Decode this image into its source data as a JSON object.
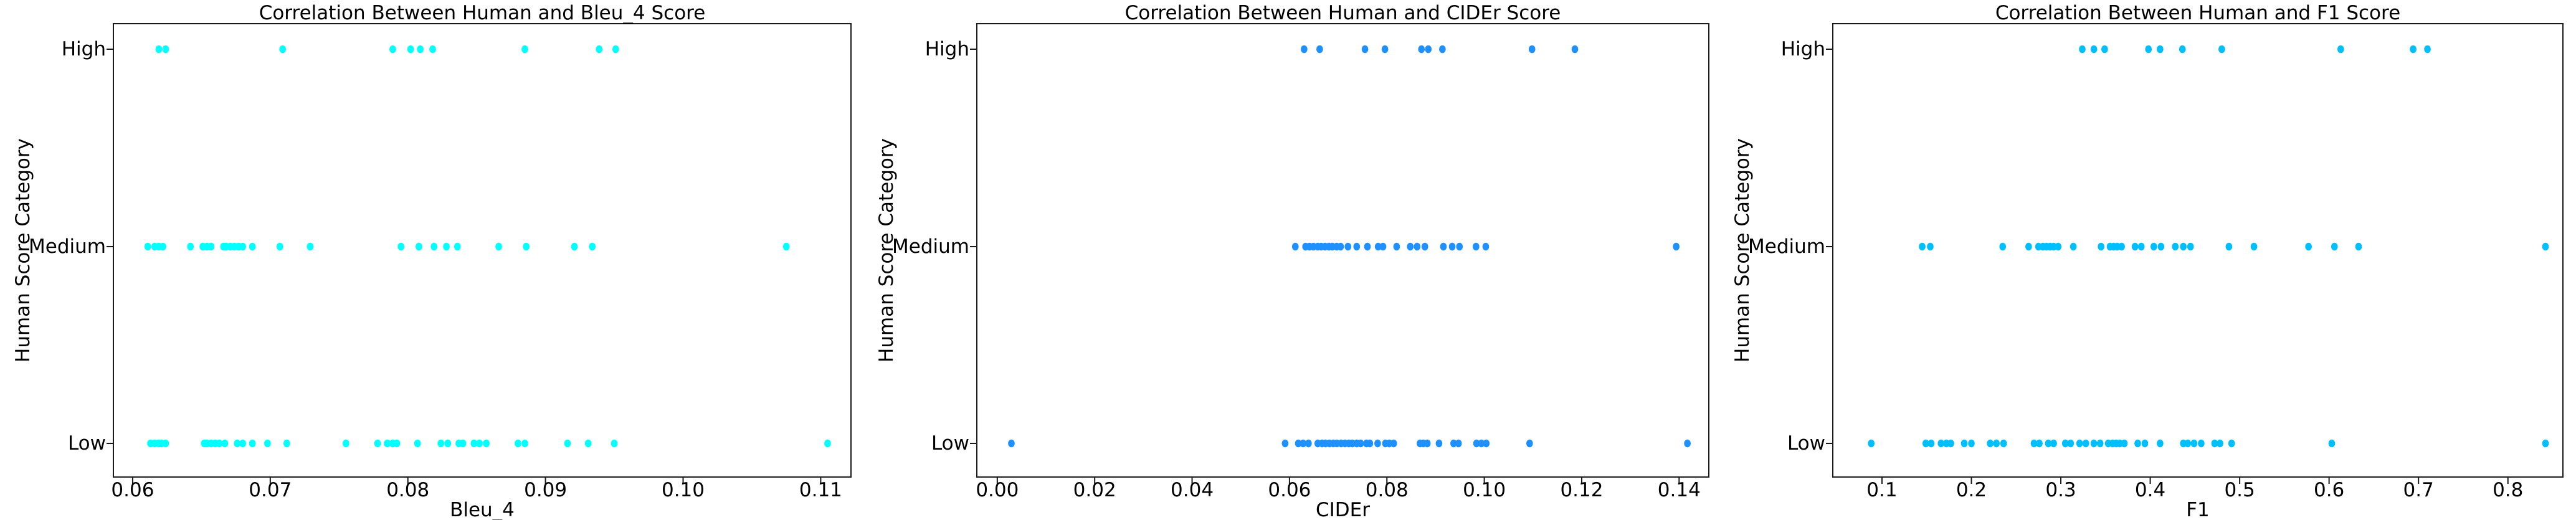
{
  "figure": {
    "background": "#ffffff",
    "spine_color": "#1a1a1a",
    "text_color": "#000000"
  },
  "chart_data": [
    {
      "type": "scatter",
      "title": "Correlation Between Human and Bleu_4 Score",
      "xlabel": "Bleu_4",
      "ylabel": "Human Score Category",
      "categories": [
        "Low",
        "Medium",
        "High"
      ],
      "marker_color": "#00ffff",
      "xlim": [
        0.0586,
        0.1122
      ],
      "grid": false,
      "legend": "none",
      "xtick_values": [
        0.06,
        0.07,
        0.08,
        0.09,
        0.1,
        0.11
      ],
      "xtick_labels": [
        "0.06",
        "0.07",
        "0.08",
        "0.09",
        "0.10",
        "0.11"
      ],
      "series": [
        {
          "category": "High",
          "x": [
            0.0619,
            0.0624,
            0.0709,
            0.0789,
            0.0802,
            0.0809,
            0.0818,
            0.0885,
            0.0939,
            0.0951
          ]
        },
        {
          "category": "Medium",
          "x": [
            0.0611,
            0.0616,
            0.0619,
            0.0622,
            0.0642,
            0.0651,
            0.0654,
            0.0657,
            0.0666,
            0.0668,
            0.0671,
            0.0674,
            0.0677,
            0.068,
            0.0687,
            0.0707,
            0.0729,
            0.0795,
            0.0808,
            0.0819,
            0.0828,
            0.0836,
            0.0866,
            0.0886,
            0.0921,
            0.0934,
            0.1075
          ]
        },
        {
          "category": "Low",
          "x": [
            0.0613,
            0.0616,
            0.0619,
            0.0621,
            0.0624,
            0.0652,
            0.0654,
            0.0657,
            0.066,
            0.0663,
            0.0667,
            0.0676,
            0.068,
            0.0687,
            0.0698,
            0.0712,
            0.0755,
            0.0778,
            0.0785,
            0.0789,
            0.0792,
            0.0807,
            0.0824,
            0.0829,
            0.0837,
            0.084,
            0.0848,
            0.0852,
            0.0857,
            0.088,
            0.0885,
            0.0916,
            0.0931,
            0.095,
            0.1105
          ]
        }
      ]
    },
    {
      "type": "scatter",
      "title": "Correlation Between Human and CIDEr Score",
      "xlabel": "CIDEr",
      "ylabel": "Human Score Category",
      "categories": [
        "Low",
        "Medium",
        "High"
      ],
      "marker_color": "#1e90ff",
      "xlim": [
        -0.0042,
        0.1461
      ],
      "grid": false,
      "legend": "none",
      "xtick_values": [
        0.0,
        0.02,
        0.04,
        0.06,
        0.08,
        0.1,
        0.12,
        0.14
      ],
      "xtick_labels": [
        "0.00",
        "0.02",
        "0.04",
        "0.06",
        "0.08",
        "0.10",
        "0.12",
        "0.14"
      ],
      "series": [
        {
          "category": "High",
          "x": [
            0.063,
            0.0662,
            0.0755,
            0.0796,
            0.0871,
            0.0885,
            0.0914,
            0.1098,
            0.1186
          ]
        },
        {
          "category": "Medium",
          "x": [
            0.0612,
            0.0633,
            0.0641,
            0.0649,
            0.0658,
            0.0665,
            0.0673,
            0.0681,
            0.0688,
            0.0697,
            0.0705,
            0.072,
            0.0738,
            0.076,
            0.0782,
            0.0792,
            0.082,
            0.0848,
            0.0862,
            0.0878,
            0.0916,
            0.0934,
            0.0949,
            0.0983,
            0.1003,
            0.1394
          ]
        },
        {
          "category": "Low",
          "x": [
            0.0029,
            0.0591,
            0.0618,
            0.0628,
            0.0639,
            0.0658,
            0.0667,
            0.0674,
            0.0682,
            0.069,
            0.0697,
            0.0706,
            0.0714,
            0.0722,
            0.0729,
            0.0738,
            0.0746,
            0.0758,
            0.0765,
            0.0781,
            0.0797,
            0.0805,
            0.0814,
            0.0868,
            0.0875,
            0.0883,
            0.0907,
            0.0937,
            0.0947,
            0.0984,
            0.0994,
            0.1004,
            0.1093,
            0.1417
          ]
        }
      ]
    },
    {
      "type": "scatter",
      "title": "Correlation Between Human and F1 Score",
      "xlabel": "F1",
      "ylabel": "Human Score Category",
      "categories": [
        "Low",
        "Medium",
        "High"
      ],
      "marker_color": "#00bfff",
      "xlim": [
        0.045,
        0.8615
      ],
      "grid": false,
      "legend": "none",
      "xtick_values": [
        0.1,
        0.2,
        0.3,
        0.4,
        0.5,
        0.6,
        0.7,
        0.8
      ],
      "xtick_labels": [
        "0.1",
        "0.2",
        "0.3",
        "0.4",
        "0.5",
        "0.6",
        "0.7",
        "0.8"
      ],
      "series": [
        {
          "category": "High",
          "x": [
            0.324,
            0.337,
            0.349,
            0.398,
            0.411,
            0.436,
            0.48,
            0.613,
            0.694,
            0.71
          ]
        },
        {
          "category": "Medium",
          "x": [
            0.145,
            0.154,
            0.235,
            0.264,
            0.275,
            0.28,
            0.284,
            0.288,
            0.292,
            0.297,
            0.314,
            0.345,
            0.355,
            0.359,
            0.363,
            0.368,
            0.383,
            0.39,
            0.404,
            0.412,
            0.428,
            0.437,
            0.445,
            0.488,
            0.516,
            0.577,
            0.606,
            0.633,
            0.842
          ]
        },
        {
          "category": "Low",
          "x": [
            0.088,
            0.149,
            0.155,
            0.166,
            0.172,
            0.177,
            0.192,
            0.2,
            0.221,
            0.228,
            0.236,
            0.27,
            0.276,
            0.286,
            0.292,
            0.305,
            0.311,
            0.321,
            0.328,
            0.337,
            0.344,
            0.353,
            0.358,
            0.362,
            0.366,
            0.371,
            0.386,
            0.394,
            0.411,
            0.437,
            0.442,
            0.449,
            0.457,
            0.472,
            0.478,
            0.491,
            0.603,
            0.842
          ]
        }
      ]
    }
  ]
}
